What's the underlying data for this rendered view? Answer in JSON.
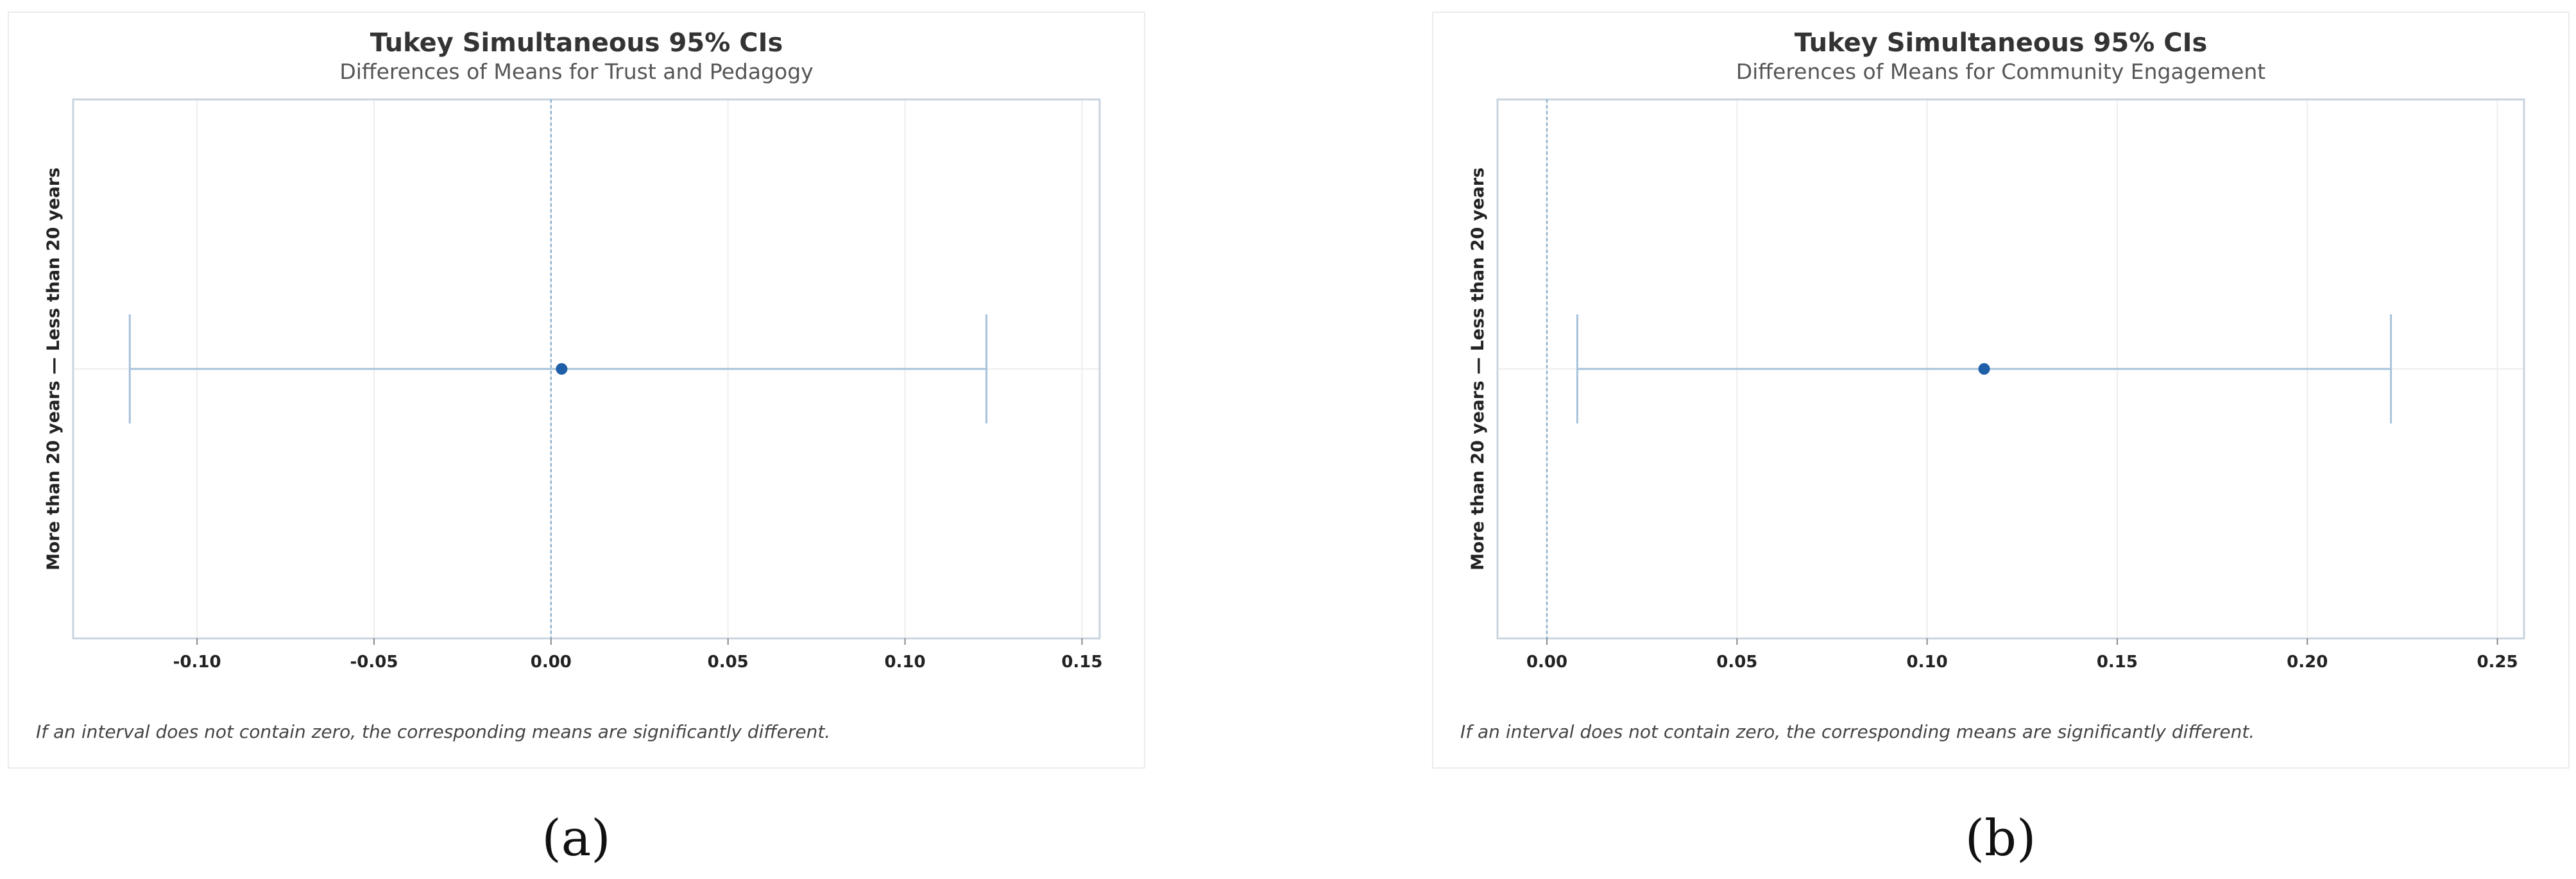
{
  "colors": {
    "interval": "#a7c2dc",
    "point": "#1f5fa7",
    "zero_line": "#8fb2cf",
    "grid": "#eeeeee",
    "frame": "#c9d4df"
  },
  "chart_data": [
    {
      "type": "scatter",
      "title": "Tukey Simultaneous 95% CIs",
      "subtitle": "Differences of Means for Trust and Pedagogy",
      "ylabel": "More than 20 years — Less than 20 years",
      "categories": [
        "More than 20 years — Less than 20 years"
      ],
      "estimate": 0.003,
      "lower": -0.119,
      "upper": 0.123,
      "xlim": [
        -0.135,
        0.155
      ],
      "xticks": [
        -0.1,
        -0.05,
        0.0,
        0.05,
        0.1,
        0.15
      ],
      "xtick_labels": [
        "-0.10",
        "-0.05",
        "0.00",
        "0.05",
        "0.10",
        "0.15"
      ],
      "reference_line": 0,
      "grid": true,
      "footnote": "If an interval does not contain zero, the corresponding means are significantly different."
    },
    {
      "type": "scatter",
      "title": "Tukey Simultaneous 95% CIs",
      "subtitle": "Differences of Means for Community Engagement",
      "ylabel": "More than 20 years — Less than 20 years",
      "categories": [
        "More than 20 years — Less than 20 years"
      ],
      "estimate": 0.115,
      "lower": 0.008,
      "upper": 0.222,
      "xlim": [
        -0.013,
        0.257
      ],
      "xticks": [
        0.0,
        0.05,
        0.1,
        0.15,
        0.2,
        0.25
      ],
      "xtick_labels": [
        "0.00",
        "0.05",
        "0.10",
        "0.15",
        "0.20",
        "0.25"
      ],
      "reference_line": 0,
      "grid": true,
      "footnote": "If an interval does not contain zero, the corresponding means are significantly different."
    }
  ],
  "figure_labels": [
    "(a)",
    "(b)"
  ]
}
